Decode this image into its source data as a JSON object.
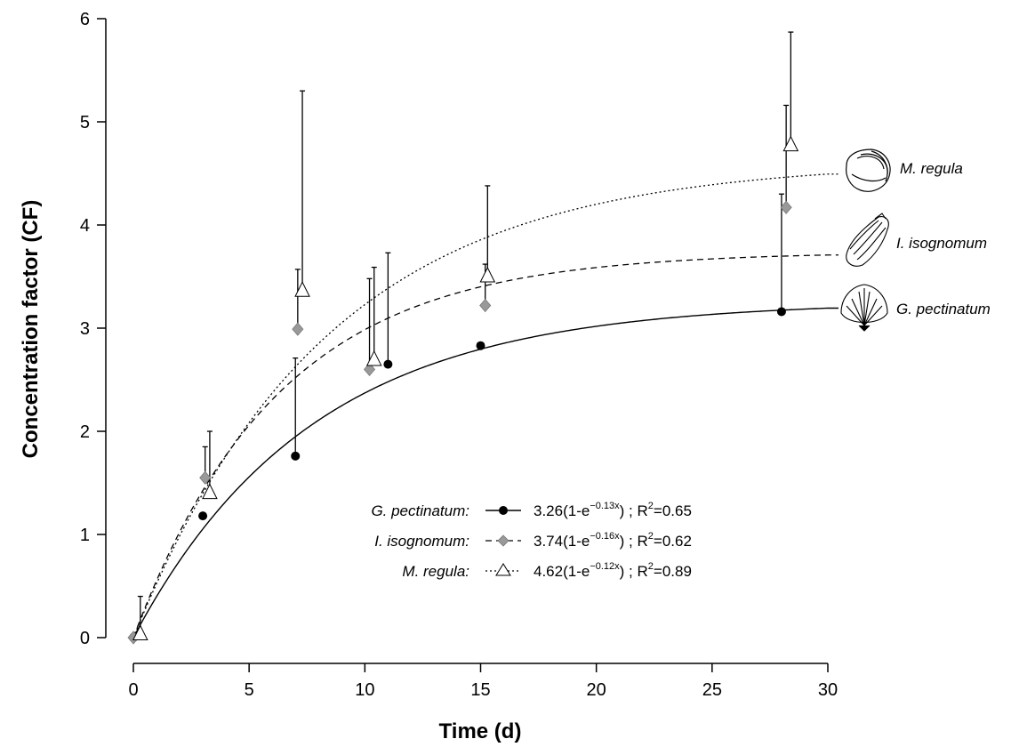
{
  "chart_data": {
    "type": "scatter",
    "xlabel": "Time (d)",
    "ylabel": "Concentration factor (CF)",
    "xlim": [
      0,
      30
    ],
    "ylim": [
      0,
      6
    ],
    "x_ticks": [
      0,
      5,
      10,
      15,
      20,
      25,
      30
    ],
    "y_ticks": [
      0,
      1,
      2,
      3,
      4,
      5,
      6
    ],
    "grid": false,
    "legend_position": "lower-center",
    "series": [
      {
        "name": "G. pectinatum:",
        "marker": "filled-circle",
        "line_style": "solid",
        "color": "#000000",
        "fit": {
          "a": 3.26,
          "k": 0.13
        },
        "equation_prefix": "3.26(1-e",
        "exponent": "−0.13x",
        "r2_value": "0.65",
        "end_label": "G. pectinatum",
        "points": [
          {
            "x": 0,
            "y": 0,
            "err": 0
          },
          {
            "x": 3,
            "y": 1.18,
            "err": 0
          },
          {
            "x": 7,
            "y": 1.76,
            "err": 0.95
          },
          {
            "x": 11,
            "y": 2.65,
            "err": 1.08
          },
          {
            "x": 15,
            "y": 2.83,
            "err": 0
          },
          {
            "x": 28,
            "y": 3.16,
            "err": 1.14
          }
        ]
      },
      {
        "name": "I. isognomum:",
        "marker": "grey-diamond",
        "line_style": "dashed",
        "color": "#999999",
        "fit": {
          "a": 3.74,
          "k": 0.16
        },
        "equation_prefix": "3.74(1-e",
        "exponent": "−0.16x",
        "r2_value": "0.62",
        "end_label": "I. isognomum",
        "points": [
          {
            "x": 0,
            "y": 0,
            "err": 0
          },
          {
            "x": 3.1,
            "y": 1.55,
            "err": 0.3
          },
          {
            "x": 7.1,
            "y": 2.99,
            "err": 0.58
          },
          {
            "x": 10.2,
            "y": 2.6,
            "err": 0.88
          },
          {
            "x": 15.2,
            "y": 3.22,
            "err": 0.4
          },
          {
            "x": 28.2,
            "y": 4.17,
            "err": 0.99
          }
        ]
      },
      {
        "name": "M. regula:",
        "marker": "open-triangle",
        "line_style": "dotted",
        "color": "#ffffff",
        "fit": {
          "a": 4.62,
          "k": 0.12
        },
        "equation_prefix": "4.62(1-e",
        "exponent": "−0.12x",
        "r2_value": "0.89",
        "end_label": "M. regula",
        "points": [
          {
            "x": 0.3,
            "y": 0.03,
            "err": 0.37
          },
          {
            "x": 3.3,
            "y": 1.4,
            "err": 0.6
          },
          {
            "x": 7.3,
            "y": 3.36,
            "err": 1.94
          },
          {
            "x": 10.4,
            "y": 2.69,
            "err": 0.9
          },
          {
            "x": 15.3,
            "y": 3.5,
            "err": 0.88
          },
          {
            "x": 28.4,
            "y": 4.77,
            "err": 1.1
          }
        ]
      }
    ]
  },
  "icons": [
    "oyster-shell-icon",
    "pearl-oyster-shell-icon",
    "scallop-shell-icon"
  ]
}
